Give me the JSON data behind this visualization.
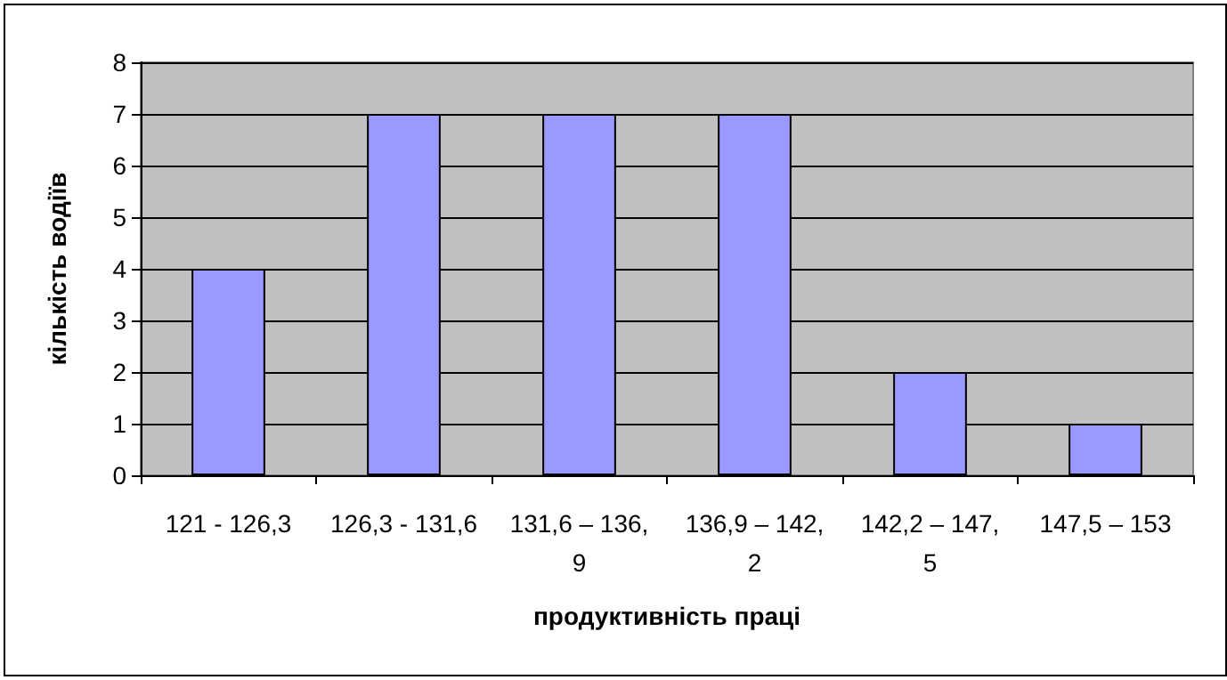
{
  "chart_data": {
    "type": "bar",
    "xlabel": "продуктивність праці",
    "ylabel": "кількість водіїв",
    "categories": [
      "121 - 126,3",
      "126,3 - 131,6",
      "131,6 – 136,9",
      "136,9 – 142,2",
      "142,2 – 147,5",
      "147,5 – 153"
    ],
    "values": [
      4,
      7,
      7,
      7,
      2,
      1
    ],
    "color": "#9999ff",
    "ylim": [
      0,
      8
    ],
    "yticks": [
      0,
      1,
      2,
      3,
      4,
      5,
      6,
      7,
      8
    ],
    "grid": "y"
  }
}
